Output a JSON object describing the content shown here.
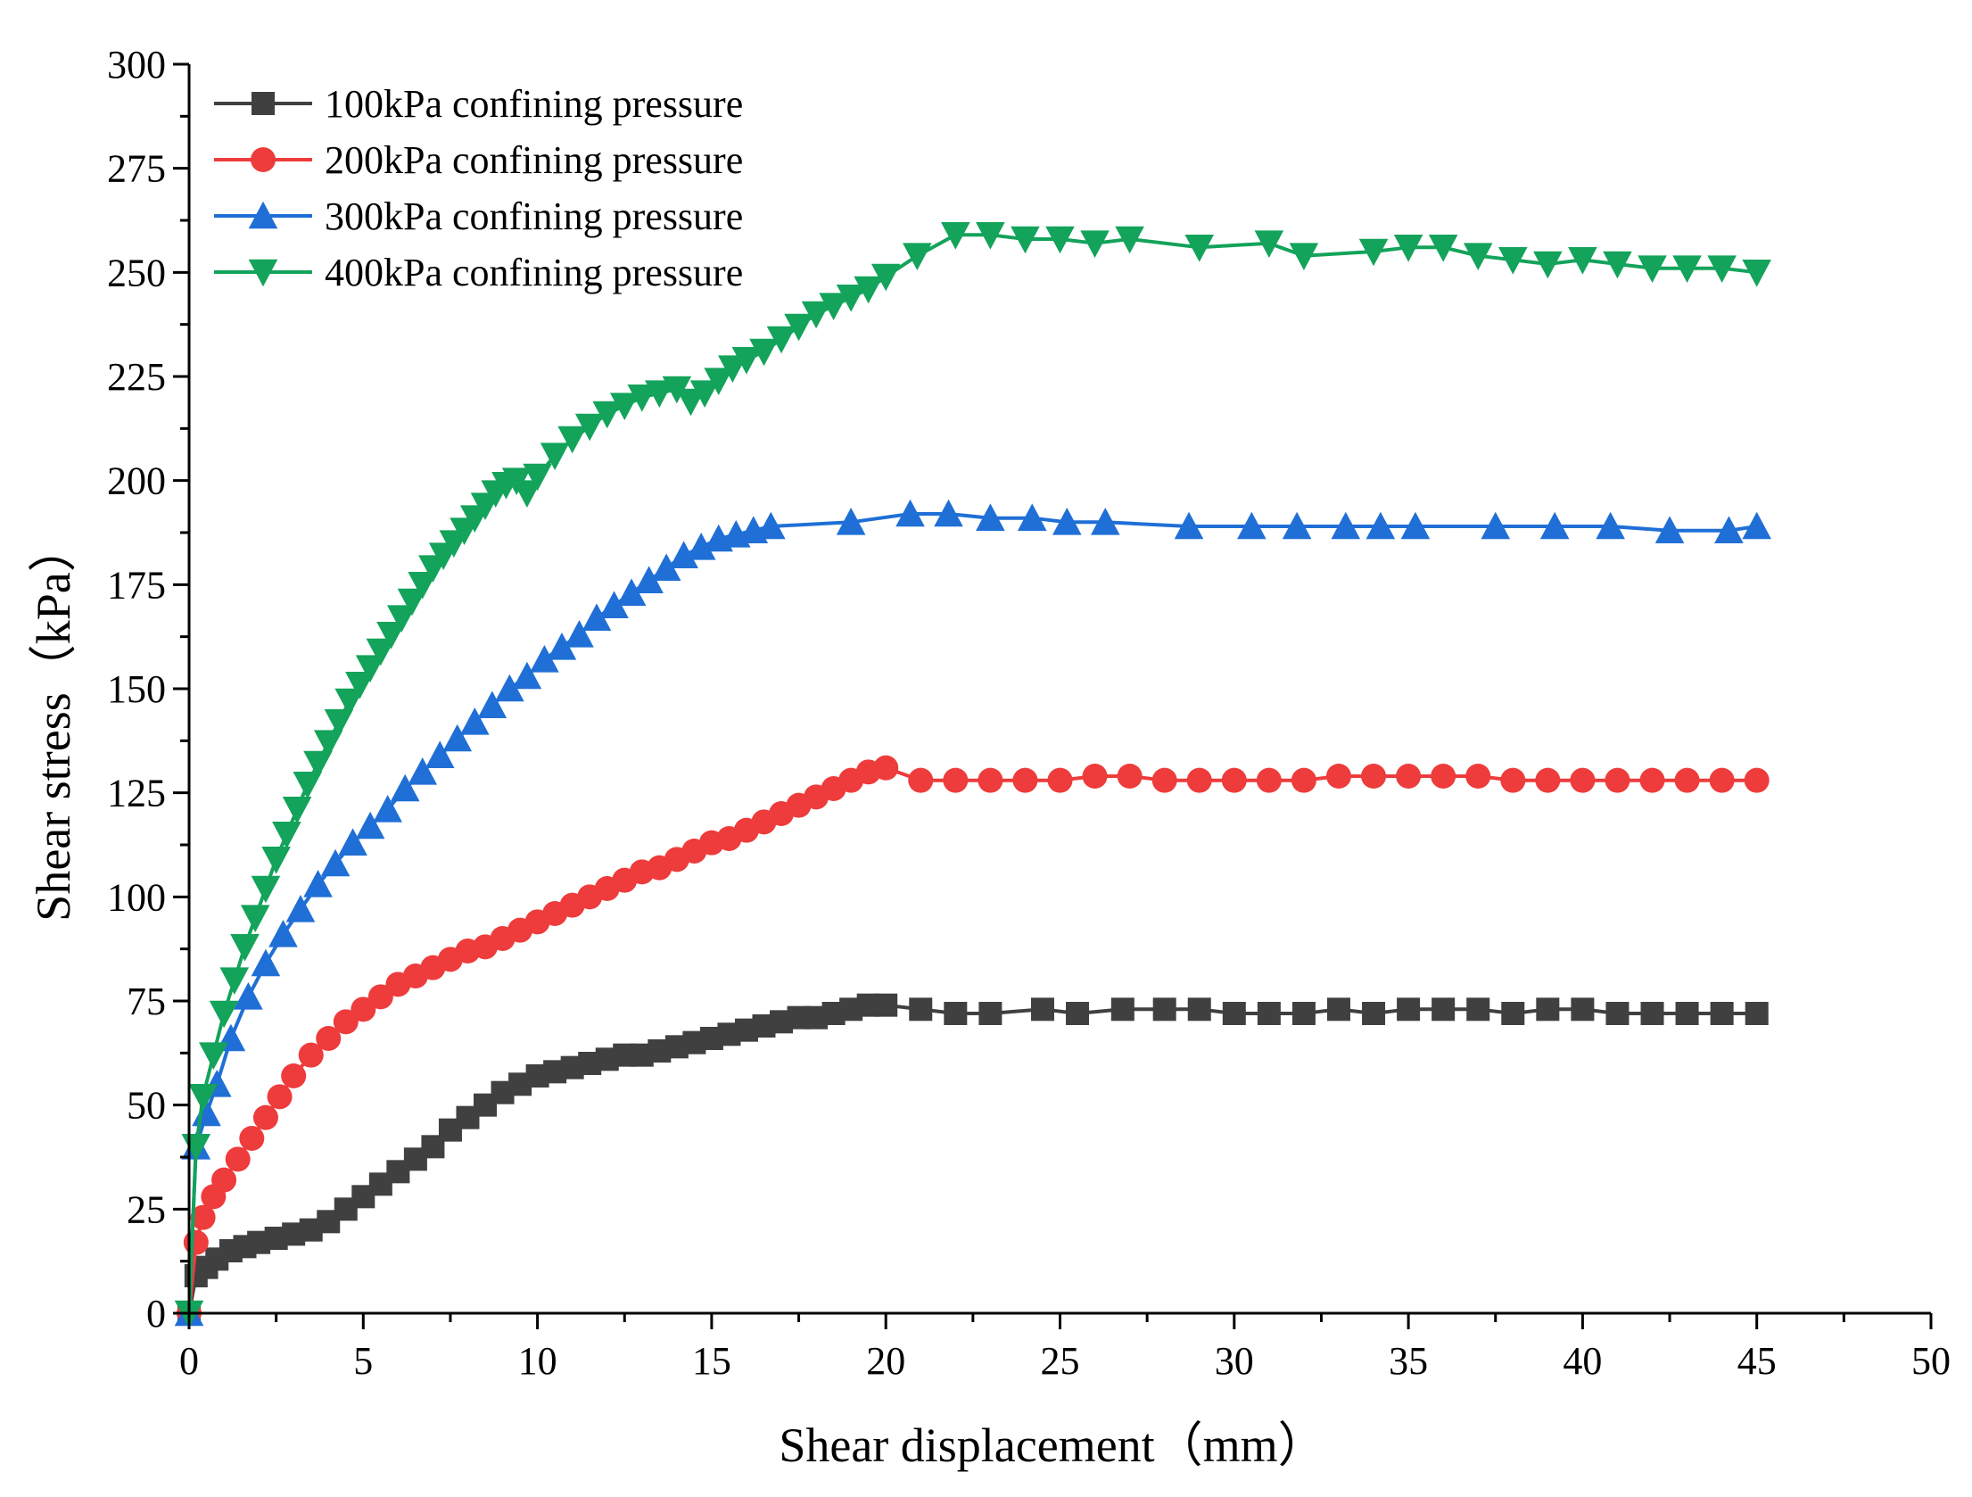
{
  "chart_data": {
    "type": "line",
    "title": "",
    "xlabel": "Shear displacement（mm）",
    "ylabel": "Shear stress（kPa）",
    "xlim": [
      0,
      50
    ],
    "ylim": [
      0,
      300
    ],
    "xticks": [
      "0",
      "5",
      "10",
      "15",
      "20",
      "25",
      "30",
      "35",
      "40",
      "45",
      "50"
    ],
    "yticks": [
      "0",
      "25",
      "50",
      "75",
      "100",
      "125",
      "150",
      "175",
      "200",
      "225",
      "250",
      "275",
      "300"
    ],
    "grid": false,
    "legend_position": "top-left",
    "series": [
      {
        "name": "100kPa confining pressure",
        "color": "#404040",
        "marker": "square",
        "x": [
          0,
          0.2,
          0.5,
          0.8,
          1.2,
          1.6,
          2.0,
          2.5,
          3.0,
          3.5,
          4.0,
          4.5,
          5.0,
          5.5,
          6.0,
          6.5,
          7.0,
          7.5,
          8.0,
          8.5,
          9.0,
          9.5,
          10.0,
          10.5,
          11.0,
          11.5,
          12.0,
          12.5,
          13.0,
          13.5,
          14.0,
          14.5,
          15.0,
          15.5,
          16.0,
          16.5,
          17.0,
          17.5,
          18.0,
          18.5,
          19.0,
          19.5,
          20.0,
          21.0,
          22.0,
          23.0,
          24.5,
          25.5,
          26.8,
          28.0,
          29.0,
          30.0,
          31.0,
          32.0,
          33.0,
          34.0,
          35.0,
          36.0,
          37.0,
          38.0,
          39.0,
          40.0,
          41.0,
          42.0,
          43.0,
          44.0,
          45.0
        ],
        "y": [
          0,
          9,
          11,
          13,
          15,
          16,
          17,
          18,
          19,
          20,
          22,
          25,
          28,
          31,
          34,
          37,
          40,
          44,
          47,
          50,
          53,
          55,
          57,
          58,
          59,
          60,
          61,
          62,
          62,
          63,
          64,
          65,
          66,
          67,
          68,
          69,
          70,
          71,
          71,
          72,
          73,
          74,
          74,
          73,
          72,
          72,
          73,
          72,
          73,
          73,
          73,
          72,
          72,
          72,
          73,
          72,
          73,
          73,
          73,
          72,
          73,
          73,
          72,
          72,
          72,
          72,
          72
        ]
      },
      {
        "name": "200kPa confining pressure",
        "color": "#ee3b3b",
        "marker": "circle",
        "x": [
          0,
          0.2,
          0.4,
          0.7,
          1.0,
          1.4,
          1.8,
          2.2,
          2.6,
          3.0,
          3.5,
          4.0,
          4.5,
          5.0,
          5.5,
          6.0,
          6.5,
          7.0,
          7.5,
          8.0,
          8.5,
          9.0,
          9.5,
          10.0,
          10.5,
          11.0,
          11.5,
          12.0,
          12.5,
          13.0,
          13.5,
          14.0,
          14.5,
          15.0,
          15.5,
          16.0,
          16.5,
          17.0,
          17.5,
          18.0,
          18.5,
          19.0,
          19.5,
          20.0,
          21.0,
          22.0,
          23.0,
          24.0,
          25.0,
          26.0,
          27.0,
          28.0,
          29.0,
          30.0,
          31.0,
          32.0,
          33.0,
          34.0,
          35.0,
          36.0,
          37.0,
          38.0,
          39.0,
          40.0,
          41.0,
          42.0,
          43.0,
          44.0,
          45.0
        ],
        "y": [
          0,
          17,
          23,
          28,
          32,
          37,
          42,
          47,
          52,
          57,
          62,
          66,
          70,
          73,
          76,
          79,
          81,
          83,
          85,
          87,
          88,
          90,
          92,
          94,
          96,
          98,
          100,
          102,
          104,
          106,
          107,
          109,
          111,
          113,
          114,
          116,
          118,
          120,
          122,
          124,
          126,
          128,
          130,
          131,
          128,
          128,
          128,
          128,
          128,
          129,
          129,
          128,
          128,
          128,
          128,
          128,
          129,
          129,
          129,
          129,
          129,
          128,
          128,
          128,
          128,
          128,
          128,
          128,
          128
        ]
      },
      {
        "name": "300kPa confining pressure",
        "color": "#1f6fd6",
        "marker": "triangle-up",
        "x": [
          0,
          0.2,
          0.5,
          0.8,
          1.2,
          1.7,
          2.2,
          2.7,
          3.2,
          3.7,
          4.2,
          4.7,
          5.2,
          5.7,
          6.2,
          6.7,
          7.2,
          7.7,
          8.2,
          8.7,
          9.2,
          9.7,
          10.2,
          10.7,
          11.2,
          11.7,
          12.2,
          12.7,
          13.2,
          13.7,
          14.2,
          14.7,
          15.2,
          15.7,
          16.2,
          16.7,
          19.0,
          20.7,
          21.8,
          23.0,
          24.2,
          25.2,
          26.3,
          28.7,
          30.5,
          31.8,
          33.2,
          34.2,
          35.2,
          37.5,
          39.2,
          40.8,
          42.5,
          44.2,
          45.0
        ],
        "y": [
          0,
          40,
          48,
          55,
          66,
          76,
          84,
          91,
          97,
          103,
          108,
          113,
          117,
          121,
          126,
          130,
          134,
          138,
          142,
          146,
          150,
          153,
          157,
          160,
          163,
          167,
          170,
          173,
          176,
          179,
          182,
          184,
          186,
          187,
          188,
          189,
          190,
          192,
          192,
          191,
          191,
          190,
          190,
          189,
          189,
          189,
          189,
          189,
          189,
          189,
          189,
          189,
          188,
          188,
          189
        ]
      },
      {
        "name": "400kPa confining pressure",
        "color": "#13a35a",
        "marker": "triangle-down",
        "x": [
          0,
          0.2,
          0.4,
          0.7,
          1.0,
          1.3,
          1.6,
          1.9,
          2.2,
          2.5,
          2.8,
          3.1,
          3.4,
          3.7,
          4.0,
          4.3,
          4.6,
          4.9,
          5.2,
          5.5,
          5.8,
          6.1,
          6.4,
          6.7,
          7.0,
          7.3,
          7.6,
          7.9,
          8.2,
          8.5,
          8.8,
          9.1,
          9.4,
          9.7,
          10.0,
          10.5,
          11.0,
          11.5,
          12.0,
          12.5,
          13.0,
          13.5,
          14.0,
          14.4,
          14.8,
          15.2,
          15.6,
          16.0,
          16.5,
          17.0,
          17.5,
          18.0,
          18.5,
          19.0,
          19.5,
          20.0,
          20.9,
          22.0,
          23.0,
          24.0,
          25.0,
          26.0,
          27.0,
          29.0,
          31.0,
          32.0,
          34.0,
          35.0,
          36.0,
          37.0,
          38.0,
          39.0,
          40.0,
          41.0,
          42.0,
          43.0,
          44.0,
          45.0
        ],
        "y": [
          0,
          40,
          52,
          62,
          72,
          80,
          88,
          95,
          102,
          109,
          115,
          121,
          127,
          132,
          137,
          142,
          147,
          151,
          155,
          159,
          163,
          167,
          171,
          175,
          179,
          182,
          185,
          188,
          191,
          194,
          197,
          199,
          200,
          197,
          201,
          206,
          210,
          213,
          216,
          218,
          220,
          221,
          222,
          219,
          221,
          224,
          227,
          229,
          231,
          234,
          237,
          240,
          242,
          244,
          246,
          249,
          254,
          259,
          259,
          258,
          258,
          257,
          258,
          256,
          257,
          254,
          255,
          256,
          256,
          254,
          253,
          252,
          253,
          252,
          251,
          251,
          251,
          250
        ]
      }
    ]
  }
}
